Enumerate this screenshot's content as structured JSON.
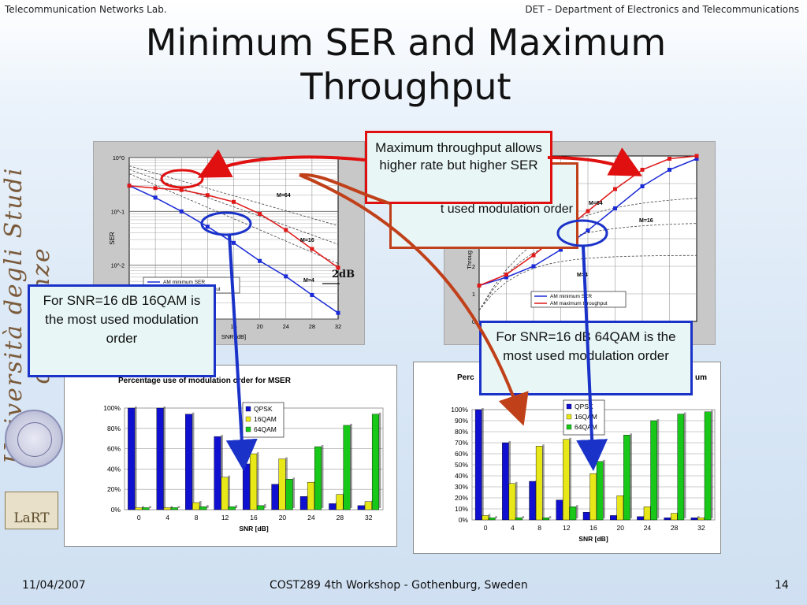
{
  "header": {
    "left": "Telecommunication Networks Lab.",
    "right": "DET – Department of Electronics and Telecommunications"
  },
  "title": {
    "line1": "Minimum SER and Maximum",
    "line2": "Throughput"
  },
  "footer": {
    "date": "11/04/2007",
    "conference": "COST289 4th Workshop - Gothenburg, Sweden",
    "page": "14"
  },
  "callouts": {
    "top_red": "Maximum throughput allows higher rate but higher SER",
    "behind_orange": "t used modulation order",
    "left_blue": "For SNR=16 dB 16QAM is the most used modulation order",
    "right_blue": "For SNR=16 dB 64QAM is the most used modulation order"
  },
  "annotations": {
    "gap": "2dB"
  },
  "colors": {
    "blue_series": "#1a2ad6",
    "red_series": "#e01818",
    "qpsk": "#1010d0",
    "qam16": "#e8e818",
    "qam64": "#18c818",
    "callout_red": "#e01010",
    "callout_blue": "#1a32c8"
  },
  "chart_data": [
    {
      "type": "line",
      "title": "",
      "xlabel": "SNR [dB]",
      "ylabel": "SER",
      "x": [
        0,
        4,
        8,
        12,
        16,
        20,
        24,
        28,
        32
      ],
      "xticks": [
        "16",
        "20",
        "24",
        "28",
        "32"
      ],
      "yticks": [
        "10^0",
        "10^-1",
        "10^-2",
        "10^-3"
      ],
      "ylim": [
        0.001,
        1
      ],
      "log_y": true,
      "series": [
        {
          "name": "AM minimum SER",
          "values": [
            0.3,
            0.18,
            0.1,
            0.052,
            0.026,
            0.012,
            0.0062,
            0.0028,
            0.0013
          ]
        },
        {
          "name": "AM maximum throughput",
          "values": [
            0.3,
            0.27,
            0.25,
            0.2,
            0.15,
            0.09,
            0.045,
            0.02,
            0.009
          ]
        }
      ],
      "labels": [
        "M=64",
        "M=16",
        "M=4"
      ],
      "legend": "bottom-left"
    },
    {
      "type": "line",
      "title": "",
      "xlabel": "",
      "ylabel": "Throug",
      "x": [
        0,
        4,
        8,
        12,
        16,
        20,
        24,
        28,
        32
      ],
      "yticks": [
        "0",
        "1",
        "2"
      ],
      "ylim": [
        0,
        6
      ],
      "series": [
        {
          "name": "AM minimum SER",
          "values": [
            1.3,
            1.6,
            2.0,
            2.6,
            3.3,
            4.1,
            4.9,
            5.5,
            5.9
          ]
        },
        {
          "name": "AM maximum throughput",
          "values": [
            1.3,
            1.7,
            2.4,
            3.2,
            4.0,
            4.8,
            5.5,
            5.9,
            6.0
          ]
        }
      ],
      "labels": [
        "M=64",
        "M=16",
        "M=4"
      ],
      "legend": "bottom-right"
    },
    {
      "type": "bar",
      "title": "Percentage use of modulation order for MSER",
      "xlabel": "SNR [dB]",
      "ylabel": "",
      "categories": [
        "0",
        "4",
        "8",
        "12",
        "16",
        "20",
        "24",
        "28",
        "32"
      ],
      "yticks": [
        "0%",
        "20%",
        "40%",
        "60%",
        "80%",
        "100%"
      ],
      "ylim": [
        0,
        100
      ],
      "series": [
        {
          "name": "QPSK",
          "values": [
            100,
            100,
            94,
            72,
            45,
            25,
            13,
            6,
            4
          ]
        },
        {
          "name": "16QAM",
          "values": [
            2,
            2,
            7,
            32,
            55,
            50,
            27,
            15,
            8
          ]
        },
        {
          "name": "64QAM",
          "values": [
            2,
            2,
            3,
            3,
            4,
            30,
            62,
            83,
            94
          ]
        }
      ],
      "legend": "top-right"
    },
    {
      "type": "bar",
      "title": "Perc",
      "title_suffix": "um",
      "xlabel": "SNR [dB]",
      "ylabel": "",
      "categories": [
        "0",
        "4",
        "8",
        "12",
        "16",
        "20",
        "24",
        "28",
        "32"
      ],
      "yticks": [
        "0%",
        "10%",
        "20%",
        "30%",
        "40%",
        "50%",
        "60%",
        "70%",
        "80%",
        "90%",
        "100%"
      ],
      "ylim": [
        0,
        100
      ],
      "series": [
        {
          "name": "QPSK",
          "values": [
            100,
            70,
            35,
            18,
            7,
            4,
            3,
            2,
            2
          ]
        },
        {
          "name": "16QAM",
          "values": [
            4,
            33,
            67,
            73,
            42,
            22,
            12,
            6,
            2
          ]
        },
        {
          "name": "64QAM",
          "values": [
            2,
            2,
            2,
            12,
            53,
            77,
            90,
            96,
            98
          ]
        }
      ],
      "legend": "top-center"
    }
  ],
  "logo": {
    "university_text": "Università degli Studi di Firenze",
    "lab_logo": "LaRT"
  }
}
